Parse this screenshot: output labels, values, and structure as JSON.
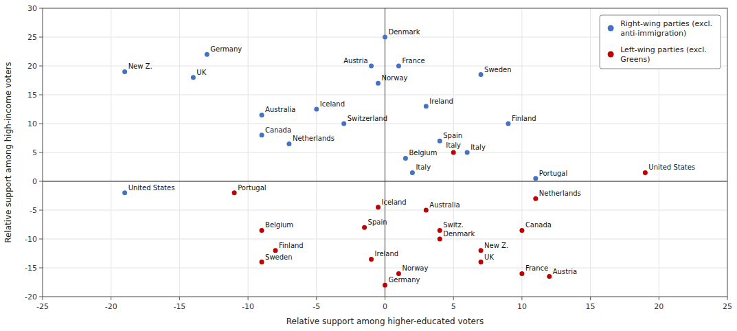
{
  "chart_data": {
    "type": "scatter",
    "xlabel": "Relative support among higher-educated voters",
    "ylabel": "Relative support among high-income voters",
    "xlim": [
      -25,
      25
    ],
    "ylim": [
      -20,
      30
    ],
    "xticks": [
      -25,
      -20,
      -15,
      -10,
      -5,
      0,
      5,
      10,
      15,
      20,
      25
    ],
    "yticks": [
      -20,
      -15,
      -10,
      -5,
      0,
      5,
      10,
      15,
      20,
      25,
      30
    ],
    "grid": true,
    "legend": "upper right",
    "marker": "circle",
    "series": [
      {
        "name": "Right-wing parties (excl.\nanti-immigration)",
        "color": "#4472C4",
        "labels": [
          "New Z.",
          "United States",
          "Germany",
          "UK",
          "Australia",
          "Canada",
          "Netherlands",
          "Iceland",
          "Switzerland",
          "Denmark",
          "Austria",
          "France",
          "Norway",
          "Ireland",
          "Sweden",
          "Finland",
          "Spain",
          "Belgium",
          "Italy",
          "Italy",
          "Portugal"
        ],
        "x": [
          -19,
          -19,
          -13,
          -14,
          -9,
          -9,
          -7,
          -5,
          -3,
          0,
          -1,
          1,
          -0.5,
          3,
          7,
          9,
          4,
          1.5,
          2,
          6,
          11
        ],
        "values": [
          19,
          -2,
          22,
          18,
          11.5,
          8,
          6.5,
          12.5,
          10,
          25,
          20,
          20,
          17,
          13,
          18.5,
          10,
          7,
          4,
          1.5,
          5,
          0.5
        ]
      },
      {
        "name": "Left-wing parties (excl.\nGreens)",
        "color": "#C00000",
        "labels": [
          "Portugal",
          "Belgium",
          "Finland",
          "Sweden",
          "Iceland",
          "Spain",
          "Ireland",
          "Germany",
          "Norway",
          "Australia",
          "Switz.",
          "Denmark",
          "New Z.",
          "UK",
          "France",
          "Austria",
          "Canada",
          "Netherlands",
          "United States",
          "Italy"
        ],
        "x": [
          -11,
          -9,
          -8,
          -9,
          -0.5,
          -1.5,
          -1,
          0,
          1,
          3,
          4,
          4,
          7,
          7,
          10,
          12,
          10,
          11,
          19,
          5
        ],
        "values": [
          -2,
          -8.5,
          -12,
          -14,
          -4.5,
          -8,
          -13.5,
          -18,
          -16,
          -5,
          -8.5,
          -10,
          -12,
          -14,
          -16,
          -16.5,
          -8.5,
          -3,
          1.5,
          5
        ]
      }
    ]
  }
}
